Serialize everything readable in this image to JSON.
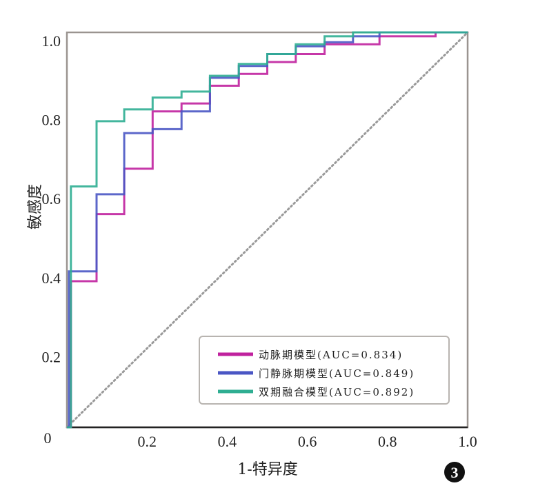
{
  "chart_data": {
    "type": "line",
    "title": "",
    "xlabel": "1-特异度",
    "ylabel": "敏感度",
    "xlim": [
      0,
      1
    ],
    "ylim": [
      0,
      1
    ],
    "grid": false,
    "legend_position": "bottom-right",
    "x_ticks": [
      "0",
      "0.2",
      "0.4",
      "0.6",
      "0.8",
      "1.0"
    ],
    "y_ticks": [
      "0.2",
      "0.4",
      "0.6",
      "0.8",
      "1.0"
    ],
    "panel_label": "3",
    "reference_line": {
      "style": "dotted",
      "color": "#999999",
      "x": [
        0,
        1
      ],
      "y": [
        0,
        1
      ]
    },
    "series": [
      {
        "name": "动脉期模型(AUC=0.834)",
        "color": "#c0219e",
        "x": [
          0,
          0.01,
          0.01,
          0.074,
          0.074,
          0.143,
          0.143,
          0.214,
          0.214,
          0.286,
          0.286,
          0.357,
          0.357,
          0.429,
          0.429,
          0.5,
          0.5,
          0.571,
          0.571,
          0.643,
          0.643,
          0.78,
          0.78,
          0.92,
          0.92,
          1
        ],
        "y": [
          0,
          0,
          0.37,
          0.37,
          0.54,
          0.54,
          0.655,
          0.655,
          0.8,
          0.8,
          0.82,
          0.82,
          0.865,
          0.865,
          0.895,
          0.895,
          0.925,
          0.925,
          0.945,
          0.945,
          0.97,
          0.97,
          0.99,
          0.99,
          1.0,
          1.0
        ]
      },
      {
        "name": "门静脉期模型(AUC=0.849)",
        "color": "#4a56c4",
        "x": [
          0,
          0.005,
          0.005,
          0.074,
          0.074,
          0.143,
          0.143,
          0.214,
          0.214,
          0.286,
          0.286,
          0.357,
          0.357,
          0.429,
          0.429,
          0.5,
          0.5,
          0.571,
          0.571,
          0.643,
          0.643,
          0.714,
          0.714,
          0.78,
          0.78,
          1
        ],
        "y": [
          0,
          0,
          0.395,
          0.395,
          0.59,
          0.59,
          0.745,
          0.745,
          0.755,
          0.755,
          0.8,
          0.8,
          0.885,
          0.885,
          0.915,
          0.915,
          0.945,
          0.945,
          0.965,
          0.965,
          0.975,
          0.975,
          0.99,
          0.99,
          1.0,
          1.0
        ]
      },
      {
        "name": "双期融合模型(AUC=0.892)",
        "color": "#2fae92",
        "x": [
          0,
          0.01,
          0.01,
          0.074,
          0.074,
          0.143,
          0.143,
          0.214,
          0.214,
          0.286,
          0.286,
          0.357,
          0.357,
          0.429,
          0.429,
          0.5,
          0.5,
          0.571,
          0.571,
          0.643,
          0.643,
          0.714,
          0.714,
          1
        ],
        "y": [
          0,
          0,
          0.61,
          0.61,
          0.775,
          0.775,
          0.805,
          0.805,
          0.835,
          0.835,
          0.85,
          0.85,
          0.89,
          0.89,
          0.92,
          0.92,
          0.945,
          0.945,
          0.97,
          0.97,
          0.99,
          0.99,
          1.0,
          1.0
        ]
      }
    ]
  }
}
